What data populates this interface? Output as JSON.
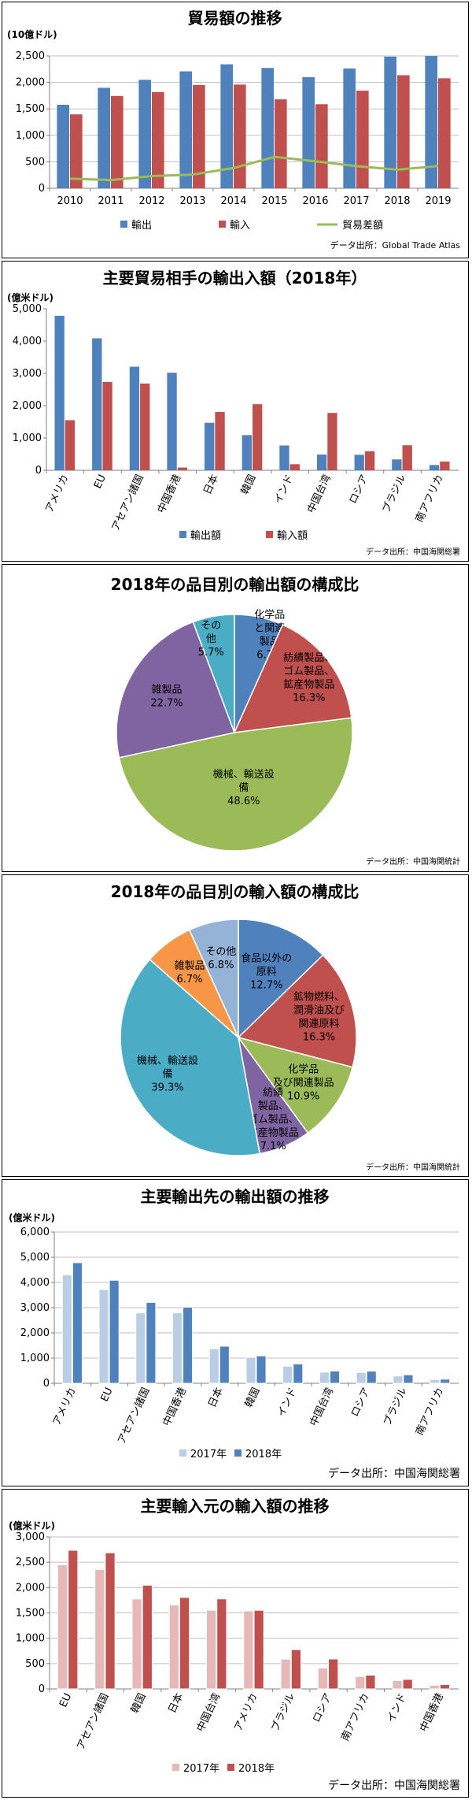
{
  "chart_data": [
    {
      "type": "bar",
      "title": "貿易額の推移",
      "ylabel": "(10億ドル)",
      "ylim": [
        0,
        2500
      ],
      "yticks": [
        0,
        500,
        1000,
        1500,
        2000,
        2500
      ],
      "ytick_labels": [
        "0",
        "500",
        "1,000",
        "1,500",
        "2,000",
        "2,500"
      ],
      "grid": true,
      "legend_position": "bottom",
      "categories": [
        "2010",
        "2011",
        "2012",
        "2013",
        "2014",
        "2015",
        "2016",
        "2017",
        "2018",
        "2019"
      ],
      "series": [
        {
          "name": "輸出",
          "type": "bar",
          "color": "#4f81bd",
          "values": [
            1578,
            1898,
            2049,
            2209,
            2342,
            2273,
            2098,
            2263,
            2487,
            2499
          ]
        },
        {
          "name": "輸入",
          "type": "bar",
          "color": "#c0504d",
          "values": [
            1396,
            1743,
            1818,
            1950,
            1959,
            1680,
            1588,
            1844,
            2136,
            2078
          ]
        },
        {
          "name": "貿易差額",
          "type": "line",
          "color": "#9bbb59",
          "values": [
            182,
            155,
            231,
            259,
            383,
            593,
            510,
            419,
            351,
            421
          ]
        }
      ],
      "source": "データ出所：Global Trade Atlas"
    },
    {
      "type": "bar",
      "title": "主要貿易相手の輸出入額（2018年）",
      "ylabel": "(億米ドル)",
      "ylim": [
        0,
        5000
      ],
      "yticks": [
        0,
        1000,
        2000,
        3000,
        4000,
        5000
      ],
      "ytick_labels": [
        "0",
        "1,000",
        "2,000",
        "3,000",
        "4,000",
        "5,000"
      ],
      "grid": false,
      "legend_position": "bottom",
      "categories": [
        "アメリカ",
        "EU",
        "アセアン諸国",
        "中国香港",
        "日本",
        "韓国",
        "インド",
        "中国台湾",
        "ロシア",
        "ブラジル",
        "南アフリカ"
      ],
      "series": [
        {
          "name": "輸出額",
          "color": "#4f81bd",
          "values": [
            4784,
            4086,
            3207,
            3021,
            1471,
            1088,
            768,
            487,
            480,
            337,
            163
          ]
        },
        {
          "name": "輸入額",
          "color": "#c0504d",
          "values": [
            1551,
            2735,
            2686,
            85,
            1806,
            2046,
            188,
            1776,
            591,
            775,
            272
          ]
        }
      ],
      "source": "データ出所：中国海関総署"
    },
    {
      "type": "pie",
      "title": "2018年の品目別の輸出額の構成比",
      "slices": [
        {
          "label": "化学品と関連製品",
          "value": 6.7,
          "display": "6.7%",
          "color": "#4f81bd"
        },
        {
          "label": "紡績製品、ゴム製品、鉱産物製品",
          "value": 16.3,
          "display": "16.3%",
          "color": "#c0504d"
        },
        {
          "label": "機械、輸送設備",
          "value": 48.6,
          "display": "48.6%",
          "color": "#9bbb59"
        },
        {
          "label": "雑製品",
          "value": 22.7,
          "display": "22.7%",
          "color": "#8064a2"
        },
        {
          "label": "その他",
          "value": 5.7,
          "display": "5.7%",
          "color": "#4bacc6"
        }
      ],
      "slice_label_lines": [
        [
          "化学品",
          "と関連",
          "製品",
          "6.7%"
        ],
        [
          "紡績製品、",
          "ゴム製品、",
          "鉱産物製品",
          "16.3%"
        ],
        [
          "機械、輸送設",
          "備",
          "48.6%"
        ],
        [
          "雑製品",
          "22.7%"
        ],
        [
          "その",
          "他",
          "5.7%"
        ]
      ],
      "source": "データ出所：中国海関統計"
    },
    {
      "type": "pie",
      "title": "2018年の品目別の輸入額の構成比",
      "slices": [
        {
          "label": "食品以外の原料",
          "value": 12.7,
          "display": "12.7%",
          "color": "#4f81bd"
        },
        {
          "label": "鉱物燃料、潤滑油及び関連原料",
          "value": 16.3,
          "display": "16.3%",
          "color": "#c0504d"
        },
        {
          "label": "化学品及び関連製品",
          "value": 10.9,
          "display": "10.9%",
          "color": "#9bbb59"
        },
        {
          "label": "紡績製品、ゴム製品、鉱産物製品",
          "value": 7.1,
          "display": "7.1%",
          "color": "#8064a2"
        },
        {
          "label": "機械、輸送設備",
          "value": 39.3,
          "display": "39.3%",
          "color": "#4bacc6"
        },
        {
          "label": "雑製品",
          "value": 6.7,
          "display": "6.7%",
          "color": "#f79646"
        },
        {
          "label": "その他",
          "value": 6.8,
          "display": "6.8%",
          "color": "#95b3d7"
        }
      ],
      "slice_label_lines": [
        [
          "食品以外の",
          "原料",
          "12.7%"
        ],
        [
          "鉱物燃料、",
          "潤滑油及び",
          "関連原料",
          "16.3%"
        ],
        [
          "化学品",
          "及び関連製品",
          "10.9%"
        ],
        [
          "紡績",
          "製品、",
          "ゴム製品、",
          "鉱産物製品",
          "7.1%"
        ],
        [
          "機械、輸送設",
          "備",
          "39.3%"
        ],
        [
          "雑製品",
          "6.7%"
        ],
        [
          "その他",
          "6.8%"
        ]
      ],
      "source": "データ出所：中国海関統計"
    },
    {
      "type": "bar",
      "title": "主要輸出先の輸出額の推移",
      "ylabel": "(億米ドル)",
      "ylim": [
        0,
        6000
      ],
      "yticks": [
        0,
        1000,
        2000,
        3000,
        4000,
        5000,
        6000
      ],
      "ytick_labels": [
        "0",
        "1,000",
        "2,000",
        "3,000",
        "4,000",
        "5,000",
        "6,000"
      ],
      "grid": true,
      "legend_position": "bottom",
      "categories": [
        "アメリカ",
        "EU",
        "アセアン諸国",
        "中国香港",
        "日本",
        "韓国",
        "インド",
        "中国台湾",
        "ロシア",
        "ブラジル",
        "南アフリカ"
      ],
      "series": [
        {
          "name": "2017年",
          "color": "#b9cde5",
          "values": [
            4297,
            3720,
            2791,
            2793,
            1373,
            1028,
            680,
            440,
            429,
            290,
            148
          ]
        },
        {
          "name": "2018年",
          "color": "#4f81bd",
          "values": [
            4784,
            4086,
            3207,
            3021,
            1471,
            1088,
            768,
            487,
            480,
            337,
            163
          ]
        }
      ],
      "source": "データ出所：中国海関総署"
    },
    {
      "type": "bar",
      "title": "主要輸入元の輸入額の推移",
      "ylabel": "(億米ドル)",
      "ylim": [
        0,
        3000
      ],
      "yticks": [
        0,
        500,
        1000,
        1500,
        2000,
        2500,
        3000
      ],
      "ytick_labels": [
        "0",
        "500",
        "1,000",
        "1,500",
        "2,000",
        "2,500",
        "3,000"
      ],
      "grid": true,
      "legend_position": "bottom",
      "categories": [
        "EU",
        "アセアン諸国",
        "韓国",
        "日本",
        "中国台湾",
        "アメリカ",
        "ブラジル",
        "ロシア",
        "南アフリカ",
        "インド",
        "中国香港"
      ],
      "series": [
        {
          "name": "2017年",
          "color": "#e6b9b8",
          "values": [
            2449,
            2357,
            1776,
            1657,
            1553,
            1539,
            588,
            412,
            245,
            163,
            73
          ]
        },
        {
          "name": "2018年",
          "color": "#c0504d",
          "values": [
            2735,
            2686,
            2046,
            1806,
            1776,
            1551,
            775,
            591,
            272,
            188,
            85
          ]
        }
      ],
      "source": "データ出所：中国海関総署"
    }
  ]
}
